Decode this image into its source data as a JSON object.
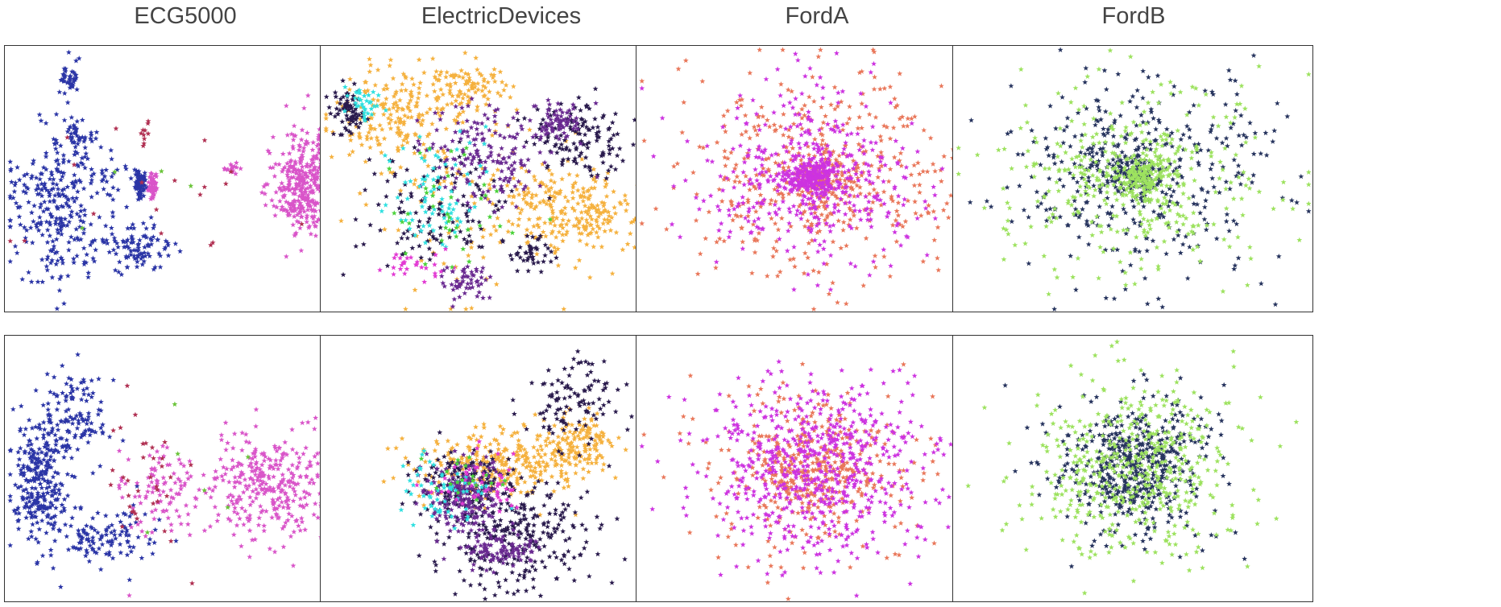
{
  "figure": {
    "columns": [
      "ECG5000",
      "ElectricDevices",
      "FordA",
      "FordB"
    ]
  },
  "chart_data": [
    {
      "type": "scatter",
      "dataset": "ECG5000",
      "row": 1,
      "title": "ECG5000",
      "xlabel": "",
      "ylabel": "",
      "grid": false,
      "legend": "none",
      "series": [
        {
          "color": "#2b35a6",
          "count": 560,
          "clusters": [
            {
              "cx": 0.14,
              "cy": 0.6,
              "rx": 0.11,
              "ry": 0.26,
              "w": 0.52
            },
            {
              "cx": 0.37,
              "cy": 0.76,
              "rx": 0.09,
              "ry": 0.1,
              "w": 0.16
            },
            {
              "cx": 0.18,
              "cy": 0.12,
              "rx": 0.03,
              "ry": 0.06,
              "w": 0.08
            },
            {
              "cx": 0.2,
              "cy": 0.34,
              "rx": 0.04,
              "ry": 0.05,
              "w": 0.06
            },
            {
              "cx": 0.375,
              "cy": 0.52,
              "rx": 0.015,
              "ry": 0.045,
              "w": 0.13
            },
            {
              "cx": 0.28,
              "cy": 0.52,
              "rx": 0.08,
              "ry": 0.1,
              "w": 0.05
            }
          ]
        },
        {
          "color": "#d955c9",
          "count": 430,
          "clusters": [
            {
              "cx": 0.83,
              "cy": 0.52,
              "rx": 0.09,
              "ry": 0.18,
              "w": 0.82
            },
            {
              "cx": 0.63,
              "cy": 0.46,
              "rx": 0.02,
              "ry": 0.02,
              "w": 0.05
            },
            {
              "cx": 0.41,
              "cy": 0.52,
              "rx": 0.013,
              "ry": 0.04,
              "w": 0.13
            }
          ]
        },
        {
          "color": "#b03052",
          "count": 28,
          "clusters": [
            {
              "cx": 0.39,
              "cy": 0.33,
              "rx": 0.02,
              "ry": 0.06,
              "w": 0.5
            },
            {
              "cx": 0.4,
              "cy": 0.6,
              "rx": 0.3,
              "ry": 0.35,
              "w": 0.5
            }
          ]
        },
        {
          "color": "#6bc43a",
          "count": 4,
          "clusters": [
            {
              "cx": 0.45,
              "cy": 0.55,
              "rx": 0.25,
              "ry": 0.3,
              "w": 1
            }
          ]
        }
      ]
    },
    {
      "type": "scatter",
      "dataset": "ElectricDevices",
      "row": 1,
      "title": "ElectricDevices",
      "xlabel": "",
      "ylabel": "",
      "grid": false,
      "legend": "none",
      "series": [
        {
          "color": "#f5b13e",
          "count": 640,
          "clusters": [
            {
              "cx": 0.22,
              "cy": 0.25,
              "rx": 0.16,
              "ry": 0.16,
              "w": 0.3
            },
            {
              "cx": 0.7,
              "cy": 0.62,
              "rx": 0.18,
              "ry": 0.14,
              "w": 0.35
            },
            {
              "cx": 0.42,
              "cy": 0.15,
              "rx": 0.1,
              "ry": 0.08,
              "w": 0.15
            },
            {
              "cx": 0.45,
              "cy": 0.55,
              "rx": 0.35,
              "ry": 0.35,
              "w": 0.2
            }
          ]
        },
        {
          "color": "#2a1b4d",
          "count": 380,
          "clusters": [
            {
              "cx": 0.72,
              "cy": 0.35,
              "rx": 0.12,
              "ry": 0.14,
              "w": 0.35
            },
            {
              "cx": 0.3,
              "cy": 0.6,
              "rx": 0.2,
              "ry": 0.2,
              "w": 0.3
            },
            {
              "cx": 0.58,
              "cy": 0.78,
              "rx": 0.05,
              "ry": 0.06,
              "w": 0.15
            },
            {
              "cx": 0.08,
              "cy": 0.25,
              "rx": 0.04,
              "ry": 0.08,
              "w": 0.2
            }
          ]
        },
        {
          "color": "#6a2a91",
          "count": 300,
          "clusters": [
            {
              "cx": 0.45,
              "cy": 0.4,
              "rx": 0.15,
              "ry": 0.17,
              "w": 0.55
            },
            {
              "cx": 0.65,
              "cy": 0.28,
              "rx": 0.06,
              "ry": 0.06,
              "w": 0.25
            },
            {
              "cx": 0.4,
              "cy": 0.88,
              "rx": 0.06,
              "ry": 0.06,
              "w": 0.2
            }
          ]
        },
        {
          "color": "#2fe0e0",
          "count": 110,
          "clusters": [
            {
              "cx": 0.32,
              "cy": 0.55,
              "rx": 0.12,
              "ry": 0.2,
              "w": 0.7
            },
            {
              "cx": 0.12,
              "cy": 0.22,
              "rx": 0.05,
              "ry": 0.05,
              "w": 0.3
            }
          ]
        },
        {
          "color": "#e23ad3",
          "count": 70,
          "clusters": [
            {
              "cx": 0.94,
              "cy": 0.45,
              "rx": 0.03,
              "ry": 0.1,
              "w": 0.6
            },
            {
              "cx": 0.25,
              "cy": 0.82,
              "rx": 0.08,
              "ry": 0.05,
              "w": 0.4
            }
          ]
        },
        {
          "color": "#4bd23a",
          "count": 40,
          "clusters": [
            {
              "cx": 0.35,
              "cy": 0.6,
              "rx": 0.15,
              "ry": 0.2,
              "w": 1
            }
          ]
        }
      ]
    },
    {
      "type": "scatter",
      "dataset": "FordA",
      "row": 1,
      "title": "FordA",
      "xlabel": "",
      "ylabel": "",
      "grid": false,
      "legend": "none",
      "series": [
        {
          "color": "#e9775a",
          "count": 560,
          "clusters": [
            {
              "cx": 0.5,
              "cy": 0.48,
              "rx": 0.36,
              "ry": 0.33,
              "w": 0.88
            },
            {
              "cx": 0.5,
              "cy": 0.5,
              "rx": 0.07,
              "ry": 0.06,
              "w": 0.12
            }
          ]
        },
        {
          "color": "#cd33e0",
          "count": 640,
          "clusters": [
            {
              "cx": 0.5,
              "cy": 0.5,
              "rx": 0.3,
              "ry": 0.3,
              "w": 0.62
            },
            {
              "cx": 0.49,
              "cy": 0.49,
              "rx": 0.07,
              "ry": 0.06,
              "w": 0.38
            }
          ]
        }
      ]
    },
    {
      "type": "scatter",
      "dataset": "FordB",
      "row": 1,
      "title": "FordB",
      "xlabel": "",
      "ylabel": "",
      "grid": false,
      "legend": "none",
      "series": [
        {
          "color": "#27345e",
          "count": 520,
          "clusters": [
            {
              "cx": 0.52,
              "cy": 0.48,
              "rx": 0.32,
              "ry": 0.32,
              "w": 0.8
            },
            {
              "cx": 0.5,
              "cy": 0.48,
              "rx": 0.07,
              "ry": 0.06,
              "w": 0.2
            }
          ]
        },
        {
          "color": "#9de25f",
          "count": 520,
          "clusters": [
            {
              "cx": 0.5,
              "cy": 0.5,
              "rx": 0.35,
              "ry": 0.31,
              "w": 0.7
            },
            {
              "cx": 0.52,
              "cy": 0.49,
              "rx": 0.08,
              "ry": 0.07,
              "w": 0.3
            }
          ]
        }
      ]
    },
    {
      "type": "scatter",
      "dataset": "ECG5000",
      "row": 2,
      "xlabel": "",
      "ylabel": "",
      "grid": false,
      "legend": "none",
      "series": [
        {
          "color": "#2b35a6",
          "count": 520,
          "clusters": [
            {
              "cx": 0.1,
              "cy": 0.55,
              "rx": 0.07,
              "ry": 0.22,
              "w": 0.55
            },
            {
              "cx": 0.2,
              "cy": 0.3,
              "rx": 0.08,
              "ry": 0.18,
              "w": 0.22
            },
            {
              "cx": 0.28,
              "cy": 0.75,
              "rx": 0.12,
              "ry": 0.1,
              "w": 0.23
            }
          ]
        },
        {
          "color": "#d955c9",
          "count": 420,
          "clusters": [
            {
              "cx": 0.72,
              "cy": 0.55,
              "rx": 0.16,
              "ry": 0.18,
              "w": 0.8
            },
            {
              "cx": 0.42,
              "cy": 0.58,
              "rx": 0.1,
              "ry": 0.16,
              "w": 0.2
            }
          ]
        },
        {
          "color": "#b03052",
          "count": 35,
          "clusters": [
            {
              "cx": 0.38,
              "cy": 0.55,
              "rx": 0.12,
              "ry": 0.22,
              "w": 1
            }
          ]
        },
        {
          "color": "#6bc43a",
          "count": 6,
          "clusters": [
            {
              "cx": 0.5,
              "cy": 0.5,
              "rx": 0.2,
              "ry": 0.22,
              "w": 1
            }
          ]
        }
      ]
    },
    {
      "type": "scatter",
      "dataset": "ElectricDevices",
      "row": 2,
      "xlabel": "",
      "ylabel": "",
      "grid": false,
      "legend": "none",
      "series": [
        {
          "color": "#f5b13e",
          "count": 420,
          "clusters": [
            {
              "cx": 0.5,
              "cy": 0.48,
              "rx": 0.2,
              "ry": 0.13,
              "w": 0.7
            },
            {
              "cx": 0.72,
              "cy": 0.4,
              "rx": 0.08,
              "ry": 0.1,
              "w": 0.3
            }
          ]
        },
        {
          "color": "#2a1b4d",
          "count": 520,
          "clusters": [
            {
              "cx": 0.55,
              "cy": 0.75,
              "rx": 0.2,
              "ry": 0.18,
              "w": 0.5
            },
            {
              "cx": 0.4,
              "cy": 0.55,
              "rx": 0.12,
              "ry": 0.12,
              "w": 0.3
            },
            {
              "cx": 0.7,
              "cy": 0.25,
              "rx": 0.12,
              "ry": 0.15,
              "w": 0.2
            }
          ]
        },
        {
          "color": "#6a2a91",
          "count": 300,
          "clusters": [
            {
              "cx": 0.4,
              "cy": 0.6,
              "rx": 0.1,
              "ry": 0.14,
              "w": 0.7
            },
            {
              "cx": 0.5,
              "cy": 0.8,
              "rx": 0.08,
              "ry": 0.06,
              "w": 0.3
            }
          ]
        },
        {
          "color": "#2fe0e0",
          "count": 60,
          "clusters": [
            {
              "cx": 0.35,
              "cy": 0.58,
              "rx": 0.12,
              "ry": 0.12,
              "w": 1
            }
          ]
        },
        {
          "color": "#e23ad3",
          "count": 45,
          "clusters": [
            {
              "cx": 0.45,
              "cy": 0.55,
              "rx": 0.1,
              "ry": 0.1,
              "w": 1
            }
          ]
        },
        {
          "color": "#4bd23a",
          "count": 20,
          "clusters": [
            {
              "cx": 0.4,
              "cy": 0.52,
              "rx": 0.1,
              "ry": 0.1,
              "w": 1
            }
          ]
        }
      ]
    },
    {
      "type": "scatter",
      "dataset": "FordA",
      "row": 2,
      "xlabel": "",
      "ylabel": "",
      "grid": false,
      "legend": "none",
      "series": [
        {
          "color": "#e9775a",
          "count": 460,
          "clusters": [
            {
              "cx": 0.5,
              "cy": 0.5,
              "rx": 0.16,
              "ry": 0.18,
              "w": 0.6
            },
            {
              "cx": 0.5,
              "cy": 0.5,
              "rx": 0.32,
              "ry": 0.33,
              "w": 0.4
            }
          ]
        },
        {
          "color": "#cd33e0",
          "count": 640,
          "clusters": [
            {
              "cx": 0.5,
              "cy": 0.5,
              "rx": 0.27,
              "ry": 0.28,
              "w": 1
            }
          ]
        }
      ]
    },
    {
      "type": "scatter",
      "dataset": "FordB",
      "row": 2,
      "xlabel": "",
      "ylabel": "",
      "grid": false,
      "legend": "none",
      "series": [
        {
          "color": "#27345e",
          "count": 520,
          "clusters": [
            {
              "cx": 0.5,
              "cy": 0.5,
              "rx": 0.14,
              "ry": 0.17,
              "w": 0.6
            },
            {
              "cx": 0.5,
              "cy": 0.5,
              "rx": 0.26,
              "ry": 0.28,
              "w": 0.4
            }
          ]
        },
        {
          "color": "#9de25f",
          "count": 500,
          "clusters": [
            {
              "cx": 0.5,
              "cy": 0.5,
              "rx": 0.26,
              "ry": 0.3,
              "w": 1
            }
          ]
        }
      ]
    }
  ]
}
